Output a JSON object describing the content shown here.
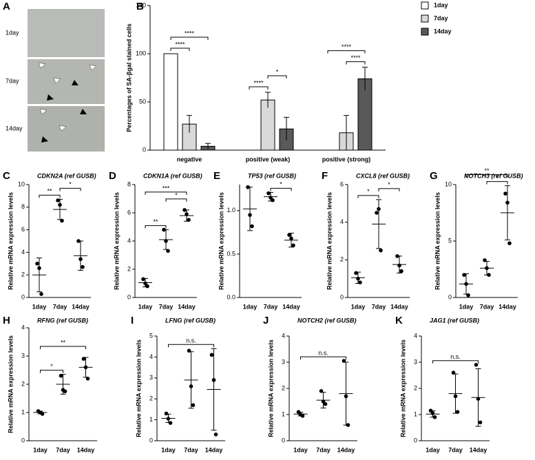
{
  "panel_a": {
    "letter": "A",
    "labels": [
      "1day",
      "7day",
      "14day"
    ]
  },
  "chart_data": [
    {
      "type": "bar",
      "panel": "B",
      "ylabel": "Percentages of SA-βgal stained cells",
      "categories": [
        "negative",
        "positive (weak)",
        "positive (strong)"
      ],
      "series": [
        {
          "name": "1day",
          "color": "#ffffff",
          "values": [
            100,
            0,
            0
          ],
          "errors": [
            0,
            0,
            0
          ]
        },
        {
          "name": "7day",
          "color": "#d9d9d9",
          "values": [
            27,
            52,
            18
          ],
          "errors": [
            9,
            8,
            18
          ]
        },
        {
          "name": "14day",
          "color": "#595959",
          "values": [
            4,
            22,
            74
          ],
          "errors": [
            3,
            12,
            12
          ]
        }
      ],
      "ylim": [
        0,
        150
      ],
      "yticks": [
        0,
        50,
        100,
        150
      ],
      "legend": "top-right",
      "annotations": [
        {
          "label": "****",
          "category": "negative",
          "between": [
            "1day",
            "7day"
          ]
        },
        {
          "label": "****",
          "category": "negative",
          "between": [
            "1day",
            "14day"
          ]
        },
        {
          "label": "****",
          "category": "positive (weak)",
          "between": [
            "1day",
            "7day"
          ]
        },
        {
          "label": "*",
          "category": "positive (weak)",
          "between": [
            "7day",
            "14day"
          ]
        },
        {
          "label": "****",
          "category": "positive (strong)",
          "between": [
            "7day",
            "14day"
          ]
        },
        {
          "label": "****",
          "category": "positive (strong)",
          "between": [
            "1day",
            "14day"
          ]
        }
      ]
    },
    {
      "type": "dot",
      "panel": "C",
      "title": "CDKN2A (ref GUSB)",
      "ylabel": "Relative mRNA expression levels",
      "categories": [
        "1day",
        "7day",
        "14day"
      ],
      "points": [
        [
          3.0,
          2.6,
          0.3
        ],
        [
          8.6,
          8.2,
          6.8
        ],
        [
          5.0,
          3.4,
          2.7
        ]
      ],
      "means": [
        2.0,
        7.8,
        3.7
      ],
      "sds": [
        1.5,
        0.9,
        1.3
      ],
      "ylim": [
        0,
        10
      ],
      "yticks": [
        0,
        2,
        4,
        6,
        8,
        10
      ],
      "annotations": [
        {
          "label": "**",
          "between": [
            "1day",
            "7day"
          ]
        },
        {
          "label": "*",
          "between": [
            "7day",
            "14day"
          ]
        }
      ]
    },
    {
      "type": "dot",
      "panel": "D",
      "title": "CDKN1A (ref GUSB)",
      "ylabel": "Relative mRNA expression levels",
      "categories": [
        "1day",
        "7day",
        "14day"
      ],
      "points": [
        [
          1.3,
          1.0,
          0.8
        ],
        [
          4.8,
          4.0,
          3.3
        ],
        [
          6.2,
          5.9,
          5.5
        ]
      ],
      "means": [
        1.05,
        4.1,
        5.8
      ],
      "sds": [
        0.3,
        0.7,
        0.4
      ],
      "ylim": [
        0,
        8
      ],
      "yticks": [
        0,
        2,
        4,
        6,
        8
      ],
      "annotations": [
        {
          "label": "**",
          "between": [
            "1day",
            "7day"
          ]
        },
        {
          "label": "*",
          "between": [
            "7day",
            "14day"
          ]
        },
        {
          "label": "***",
          "between": [
            "1day",
            "14day"
          ]
        }
      ]
    },
    {
      "type": "dot",
      "panel": "E",
      "title": "TP53 (ref GUSB)",
      "ylabel": "Relative mRNA expression levels",
      "categories": [
        "1day",
        "7day",
        "14day"
      ],
      "points": [
        [
          1.27,
          0.95,
          0.82
        ],
        [
          1.2,
          1.15,
          1.12
        ],
        [
          0.72,
          0.68,
          0.6
        ]
      ],
      "means": [
        1.02,
        1.16,
        0.66
      ],
      "sds": [
        0.25,
        0.05,
        0.08
      ],
      "ylim": [
        0,
        1.3
      ],
      "yticks": [
        {
          "value": 0,
          "label": "0.0"
        },
        {
          "value": 0.5,
          "label": "0.5"
        },
        {
          "value": 1,
          "label": "1.0"
        }
      ],
      "annotations": [
        {
          "label": "*",
          "between": [
            "7day",
            "14day"
          ]
        }
      ]
    },
    {
      "type": "dot",
      "panel": "F",
      "title": "CXCL8 (ref GUSB)",
      "ylabel": "Relative mRNA expression levels",
      "categories": [
        "1day",
        "7day",
        "14day"
      ],
      "points": [
        [
          1.3,
          1.0,
          0.8
        ],
        [
          4.5,
          4.7,
          2.5
        ],
        [
          2.2,
          1.7,
          1.4
        ]
      ],
      "means": [
        1.05,
        3.9,
        1.75
      ],
      "sds": [
        0.3,
        1.3,
        0.45
      ],
      "ylim": [
        0,
        6
      ],
      "yticks": [
        0,
        2,
        4,
        6
      ],
      "annotations": [
        {
          "label": "*",
          "between": [
            "1day",
            "7day"
          ]
        },
        {
          "label": "*",
          "between": [
            "7day",
            "14day"
          ]
        }
      ]
    },
    {
      "type": "dot",
      "panel": "G",
      "title": "NOTCH3 (ref GUSB)",
      "ylabel": "Relative mRNA expression levels",
      "categories": [
        "1day",
        "7day",
        "14day"
      ],
      "points": [
        [
          2.0,
          1.2,
          0.2
        ],
        [
          3.3,
          2.6,
          2.0
        ],
        [
          9.2,
          8.4,
          4.8
        ]
      ],
      "means": [
        1.2,
        2.6,
        7.5
      ],
      "sds": [
        0.9,
        0.6,
        2.4
      ],
      "ylim": [
        0,
        10
      ],
      "yticks": [
        0,
        5,
        10
      ],
      "annotations": [
        {
          "label": "*",
          "between": [
            "7day",
            "14day"
          ]
        },
        {
          "label": "**",
          "between": [
            "1day",
            "14day"
          ]
        }
      ]
    },
    {
      "type": "dot",
      "panel": "H",
      "title": "RFNG (ref GUSB)",
      "ylabel": "Relative mRNA expression levels",
      "categories": [
        "1day",
        "7day",
        "14day"
      ],
      "points": [
        [
          1.05,
          1.0,
          0.95
        ],
        [
          2.3,
          1.8,
          1.75
        ],
        [
          2.9,
          2.6,
          2.2
        ]
      ],
      "means": [
        1.0,
        2.0,
        2.6
      ],
      "sds": [
        0.05,
        0.35,
        0.35
      ],
      "ylim": [
        0,
        4
      ],
      "yticks": [
        0,
        1,
        2,
        3,
        4
      ],
      "annotations": [
        {
          "label": "*",
          "between": [
            "1day",
            "7day"
          ]
        },
        {
          "label": "**",
          "between": [
            "1day",
            "14day"
          ]
        }
      ]
    },
    {
      "type": "dot",
      "panel": "I",
      "title": "LFNG (ref GUSB)",
      "ylabel": "Relative mRNA expression levels",
      "categories": [
        "1day",
        "7day",
        "14day"
      ],
      "points": [
        [
          1.3,
          1.05,
          0.85
        ],
        [
          4.3,
          2.6,
          1.7
        ],
        [
          4.1,
          2.9,
          0.3
        ]
      ],
      "means": [
        1.07,
        2.9,
        2.45
      ],
      "sds": [
        0.2,
        1.35,
        1.95
      ],
      "ylim": [
        0,
        5
      ],
      "yticks": [
        0,
        1,
        2,
        3,
        4,
        5
      ],
      "annotations": [
        {
          "label": "n.s.",
          "between": [
            "1day",
            "14day"
          ]
        }
      ]
    },
    {
      "type": "dot",
      "panel": "J",
      "title": "NOTCH2 (ref GUSB)",
      "ylabel": "Relative mRNA expression levels",
      "categories": [
        "1day",
        "7day",
        "14day"
      ],
      "points": [
        [
          1.1,
          1.0,
          0.95
        ],
        [
          1.9,
          1.5,
          1.4
        ],
        [
          3.05,
          1.7,
          0.6
        ]
      ],
      "means": [
        1.02,
        1.55,
        1.8
      ],
      "sds": [
        0.07,
        0.3,
        1.2
      ],
      "ylim": [
        0,
        4
      ],
      "yticks": [
        0,
        1,
        2,
        3,
        4
      ],
      "annotations": [
        {
          "label": "n.s.",
          "between": [
            "1day",
            "14day"
          ]
        }
      ]
    },
    {
      "type": "dot",
      "panel": "K",
      "title": "JAG1 (ref GUSB)",
      "ylabel": "Relative mRNA expression levels",
      "categories": [
        "1day",
        "7day",
        "14day"
      ],
      "points": [
        [
          1.15,
          1.05,
          0.9
        ],
        [
          2.6,
          1.7,
          1.1
        ],
        [
          2.9,
          1.6,
          0.7
        ]
      ],
      "means": [
        1.02,
        1.8,
        1.65
      ],
      "sds": [
        0.12,
        0.75,
        1.1
      ],
      "ylim": [
        0,
        4
      ],
      "yticks": [
        0,
        1,
        2,
        3,
        4
      ],
      "annotations": [
        {
          "label": "n.s.",
          "between": [
            "1day",
            "14day"
          ]
        }
      ]
    }
  ]
}
